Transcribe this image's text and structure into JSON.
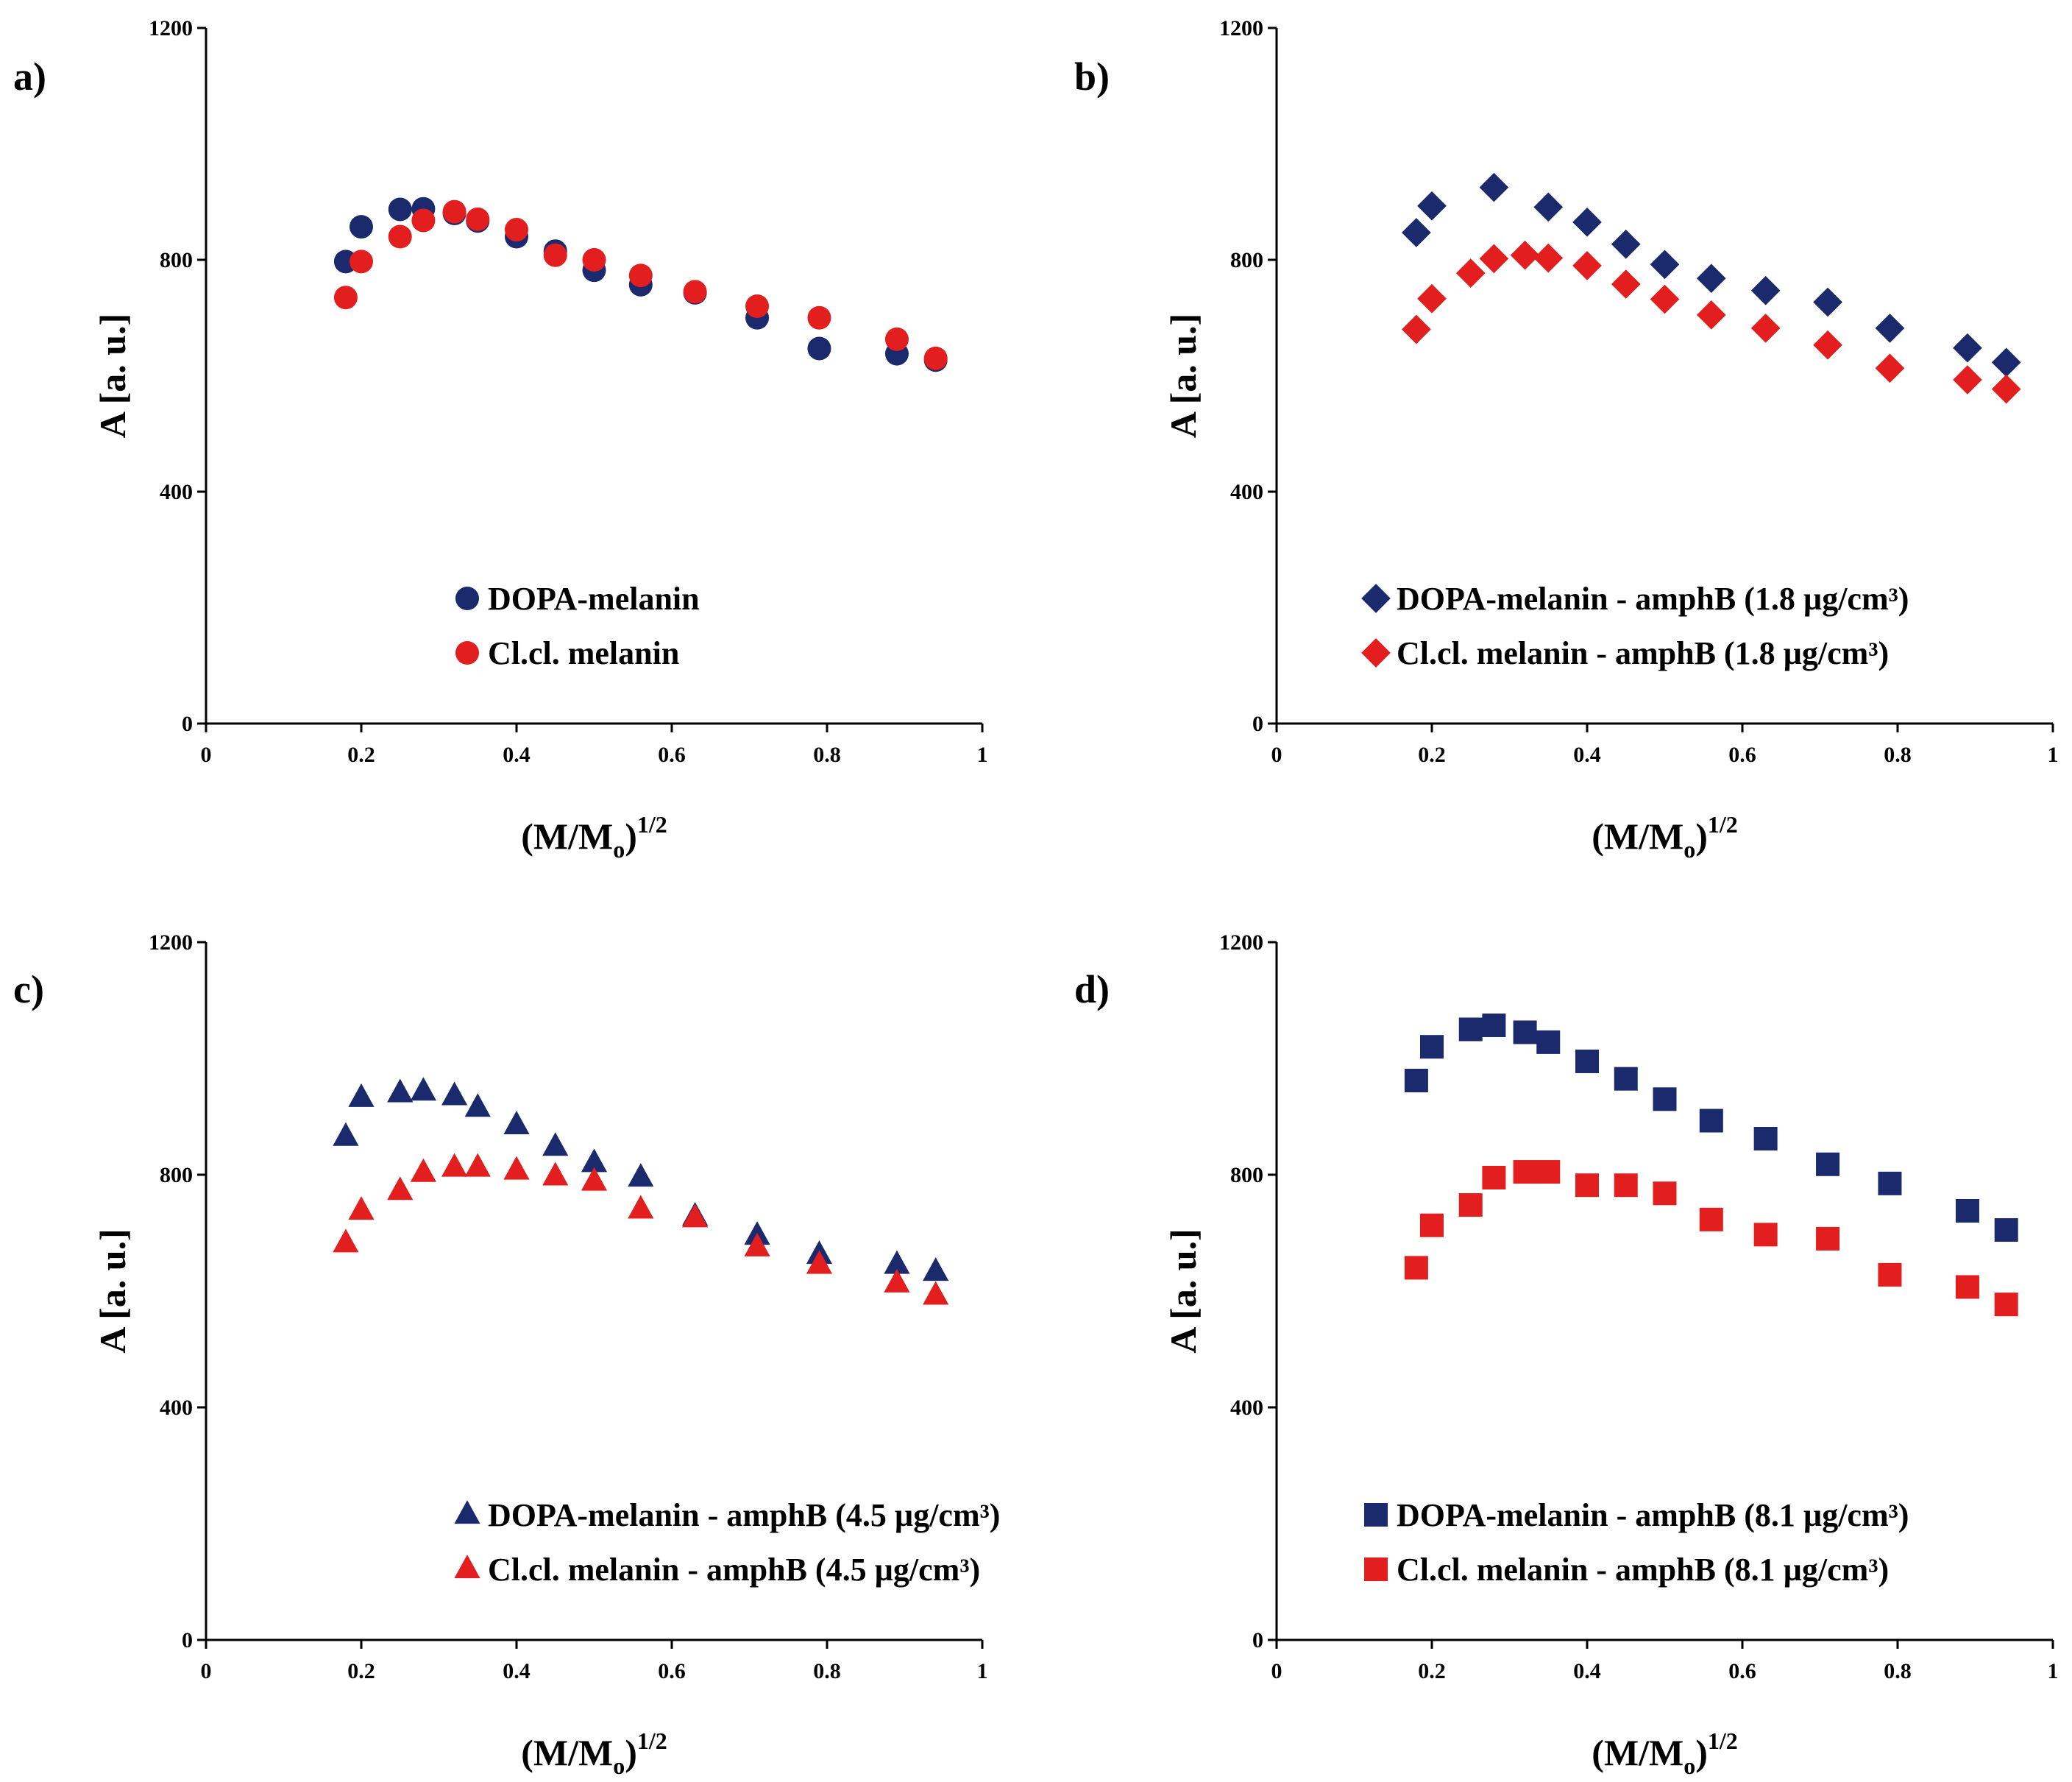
{
  "chart_data": [
    {
      "panel": "a)",
      "type": "scatter",
      "marker": "circle",
      "xlabel": "(M/Mo)1/2",
      "xlabel_parts": {
        "main": "(M/M",
        "sub": "o",
        "close": ")",
        "sup": "1/2"
      },
      "ylabel": "A [a. u.]",
      "xlim": [
        0,
        1
      ],
      "ylim": [
        0,
        1200
      ],
      "x_ticks": [
        0,
        0.2,
        0.4,
        0.6,
        0.8,
        1
      ],
      "x_tick_labels": [
        "0",
        "0.2",
        "0.4",
        "0.6",
        "0.8",
        "1"
      ],
      "y_ticks": [
        0,
        400,
        800,
        1200
      ],
      "y_tick_labels": [
        "0",
        "400",
        "800",
        "1200"
      ],
      "legend_position": "bottom-center",
      "x": [
        0.18,
        0.2,
        0.25,
        0.28,
        0.32,
        0.35,
        0.4,
        0.45,
        0.5,
        0.56,
        0.63,
        0.71,
        0.79,
        0.89,
        0.94
      ],
      "series": [
        {
          "name": "DOPA-melanin",
          "color": "#1a2a6c",
          "values": [
            797,
            857,
            887,
            888,
            880,
            867,
            840,
            815,
            782,
            757,
            743,
            700,
            647,
            638,
            627
          ]
        },
        {
          "name": "Cl.cl. melanin",
          "color": "#e31e1e",
          "values": [
            735,
            797,
            840,
            868,
            883,
            870,
            852,
            808,
            800,
            773,
            745,
            720,
            700,
            663,
            630
          ]
        }
      ]
    },
    {
      "panel": "b)",
      "type": "scatter",
      "marker": "diamond",
      "xlabel": "(M/Mo)1/2",
      "xlabel_parts": {
        "main": "(M/M",
        "sub": "o",
        "close": ")",
        "sup": "1/2"
      },
      "ylabel": "A [a. u.]",
      "xlim": [
        0,
        1
      ],
      "ylim": [
        0,
        1200
      ],
      "x_ticks": [
        0,
        0.2,
        0.4,
        0.6,
        0.8,
        1
      ],
      "x_tick_labels": [
        "0",
        "0.2",
        "0.4",
        "0.6",
        "0.8",
        "1"
      ],
      "y_ticks": [
        0,
        400,
        800,
        1200
      ],
      "y_tick_labels": [
        "0",
        "400",
        "800",
        "1200"
      ],
      "legend_position": "bottom-center",
      "x": [
        0.18,
        0.2,
        0.25,
        0.28,
        0.32,
        0.35,
        0.4,
        0.45,
        0.5,
        0.56,
        0.63,
        0.71,
        0.79,
        0.89,
        0.94
      ],
      "series": [
        {
          "name": "DOPA-melanin - amphB (1.8 µg/cm³)",
          "color": "#1a2a6c",
          "values": [
            847,
            893,
            null,
            925,
            null,
            891,
            865,
            827,
            792,
            768,
            747,
            727,
            682,
            648,
            623
          ]
        },
        {
          "name": "Cl.cl. melanin - amphB (1.8 µg/cm³)",
          "color": "#e31e1e",
          "values": [
            680,
            733,
            777,
            802,
            808,
            803,
            790,
            758,
            732,
            705,
            682,
            653,
            613,
            593,
            577
          ]
        }
      ]
    },
    {
      "panel": "c)",
      "type": "scatter",
      "marker": "triangle",
      "xlabel": "(M/Mo)1/2",
      "xlabel_parts": {
        "main": "(M/M",
        "sub": "o",
        "close": ")",
        "sup": "1/2"
      },
      "ylabel": "A [a. u.]",
      "xlim": [
        0,
        1
      ],
      "ylim": [
        0,
        1200
      ],
      "x_ticks": [
        0,
        0.2,
        0.4,
        0.6,
        0.8,
        1
      ],
      "x_tick_labels": [
        "0",
        "0.2",
        "0.4",
        "0.6",
        "0.8",
        "1"
      ],
      "y_ticks": [
        0,
        400,
        800,
        1200
      ],
      "y_tick_labels": [
        "0",
        "400",
        "800",
        "1200"
      ],
      "legend_position": "bottom-center",
      "x": [
        0.18,
        0.2,
        0.25,
        0.28,
        0.32,
        0.35,
        0.4,
        0.45,
        0.5,
        0.56,
        0.63,
        0.71,
        0.79,
        0.89,
        0.94
      ],
      "series": [
        {
          "name": "DOPA-melanin - amphB (4.5 µg/cm³)",
          "color": "#1a2a6c",
          "values": [
            865,
            932,
            940,
            943,
            935,
            915,
            885,
            848,
            820,
            795,
            728,
            695,
            662,
            645,
            633
          ]
        },
        {
          "name": "Cl.cl. melanin - amphB (4.5 µg/cm³)",
          "color": "#e31e1e",
          "values": [
            682,
            738,
            772,
            803,
            812,
            812,
            807,
            797,
            788,
            740,
            725,
            675,
            645,
            613,
            592
          ]
        }
      ]
    },
    {
      "panel": "d)",
      "type": "scatter",
      "marker": "square",
      "xlabel": "(M/Mo)1/2",
      "xlabel_parts": {
        "main": "(M/M",
        "sub": "o",
        "close": ")",
        "sup": "1/2"
      },
      "ylabel": "A [a. u.]",
      "xlim": [
        0,
        1
      ],
      "ylim": [
        0,
        1200
      ],
      "x_ticks": [
        0,
        0.2,
        0.4,
        0.6,
        0.8,
        1
      ],
      "x_tick_labels": [
        "0",
        "0.2",
        "0.4",
        "0.6",
        "0.8",
        "1"
      ],
      "y_ticks": [
        0,
        400,
        800,
        1200
      ],
      "y_tick_labels": [
        "0",
        "400",
        "800",
        "1200"
      ],
      "legend_position": "bottom-center",
      "x": [
        0.18,
        0.2,
        0.25,
        0.28,
        0.32,
        0.35,
        0.4,
        0.45,
        0.5,
        0.56,
        0.63,
        0.71,
        0.79,
        0.89,
        0.94
      ],
      "series": [
        {
          "name": "DOPA-melanin - amphB (8.1 µg/cm³)",
          "color": "#1a2a6c",
          "values": [
            962,
            1020,
            1050,
            1057,
            1045,
            1028,
            995,
            965,
            930,
            893,
            862,
            818,
            785,
            738,
            705
          ]
        },
        {
          "name": "Cl.cl. melanin - amphB (8.1 µg/cm³)",
          "color": "#e31e1e",
          "values": [
            640,
            713,
            748,
            795,
            805,
            805,
            782,
            782,
            768,
            723,
            697,
            690,
            628,
            607,
            577
          ]
        }
      ]
    }
  ]
}
